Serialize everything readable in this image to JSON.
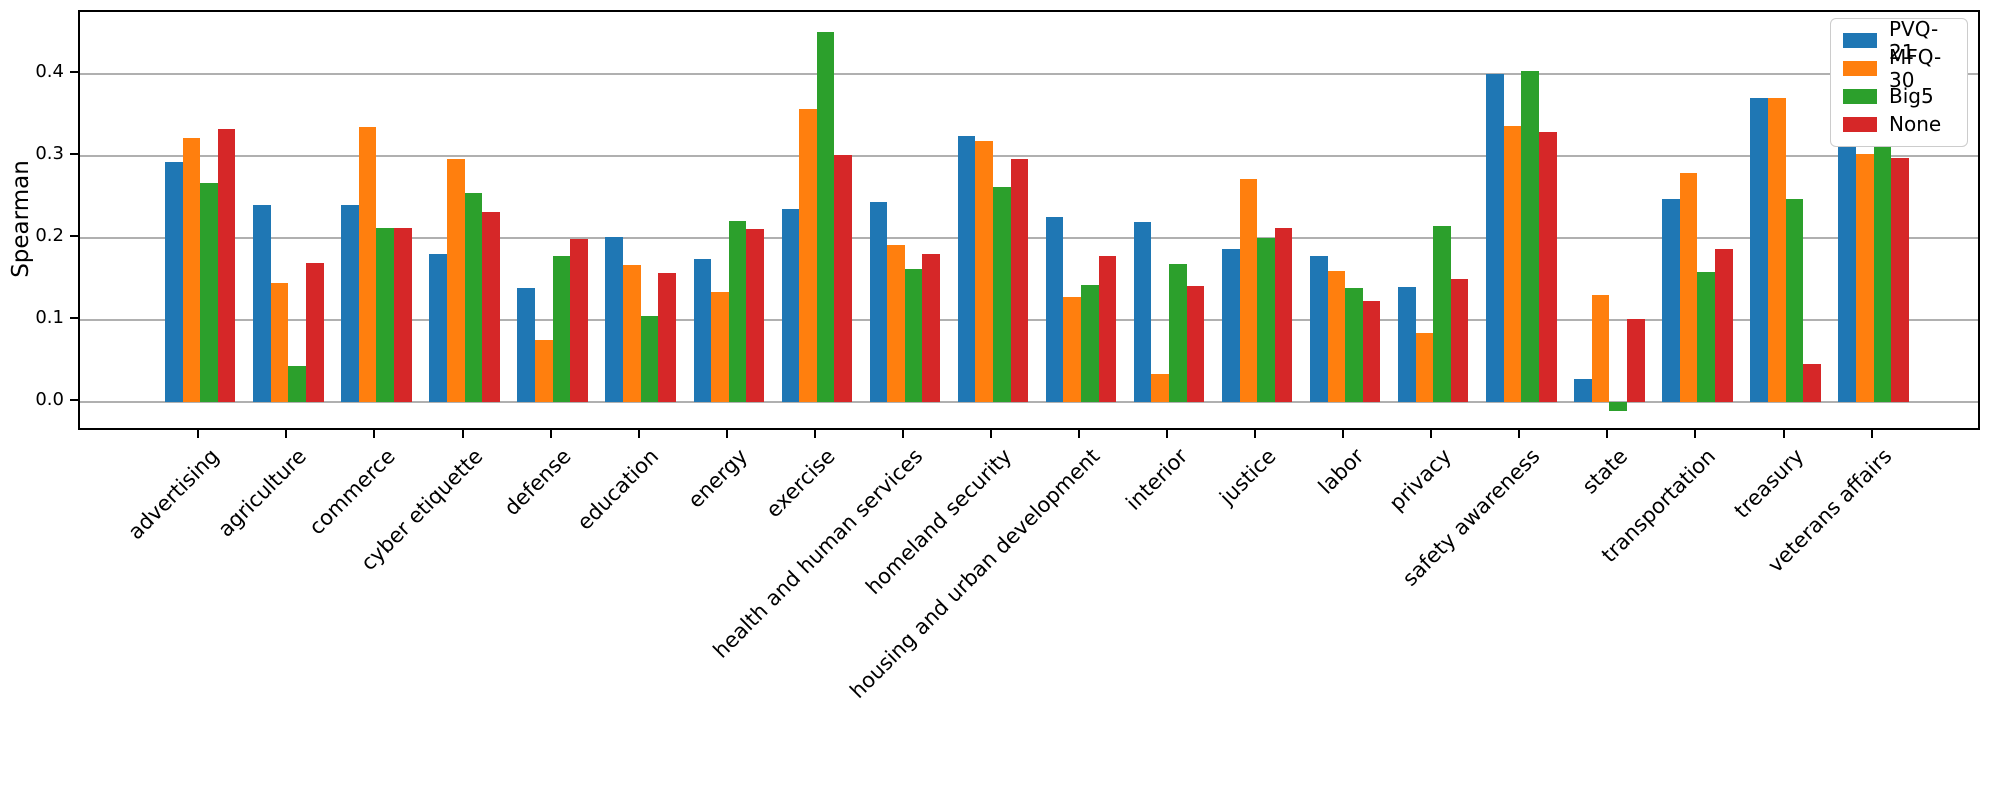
{
  "figure": {
    "background": "#ffffff"
  },
  "chart_data": {
    "type": "bar",
    "title": "",
    "xlabel": "",
    "ylabel": "Spearman",
    "grid": true,
    "gridline_color": "#b0b0b0",
    "legend_position": "upper right",
    "x_tick_rotation": 45,
    "yticks": [
      0.0,
      0.1,
      0.2,
      0.3,
      0.4
    ],
    "ylim": [
      -0.036,
      0.476
    ],
    "categories": [
      "advertising",
      "agriculture",
      "commerce",
      "cyber etiquette",
      "defense",
      "education",
      "energy",
      "exercise",
      "health and human services",
      "homeland security",
      "housing and urban development",
      "interior",
      "justice",
      "labor",
      "privacy",
      "safety awareness",
      "state",
      "transportation",
      "treasury",
      "veterans affairs"
    ],
    "series": [
      {
        "name": "PVQ-21",
        "color": "#1f77b4",
        "values": [
          0.293,
          0.241,
          0.241,
          0.181,
          0.14,
          0.201,
          0.175,
          0.236,
          0.244,
          0.325,
          0.226,
          0.22,
          0.187,
          0.179,
          0.141,
          0.4,
          0.029,
          0.248,
          0.371,
          0.345
        ]
      },
      {
        "name": "MFQ-30",
        "color": "#ff7f0e",
        "values": [
          0.322,
          0.146,
          0.336,
          0.297,
          0.076,
          0.167,
          0.134,
          0.357,
          0.192,
          0.318,
          0.128,
          0.035,
          0.272,
          0.16,
          0.084,
          0.337,
          0.131,
          0.279,
          0.371,
          0.303
        ]
      },
      {
        "name": "Big5",
        "color": "#2ca02c",
        "values": [
          0.267,
          0.044,
          0.212,
          0.255,
          0.178,
          0.105,
          0.221,
          0.452,
          0.162,
          0.262,
          0.143,
          0.169,
          0.2,
          0.139,
          0.215,
          0.404,
          -0.01,
          0.159,
          0.248,
          0.323
        ]
      },
      {
        "name": "None",
        "color": "#d62728",
        "values": [
          0.333,
          0.17,
          0.213,
          0.232,
          0.199,
          0.158,
          0.211,
          0.302,
          0.181,
          0.297,
          0.178,
          0.142,
          0.212,
          0.124,
          0.151,
          0.33,
          0.102,
          0.187,
          0.047,
          0.298
        ]
      }
    ]
  }
}
